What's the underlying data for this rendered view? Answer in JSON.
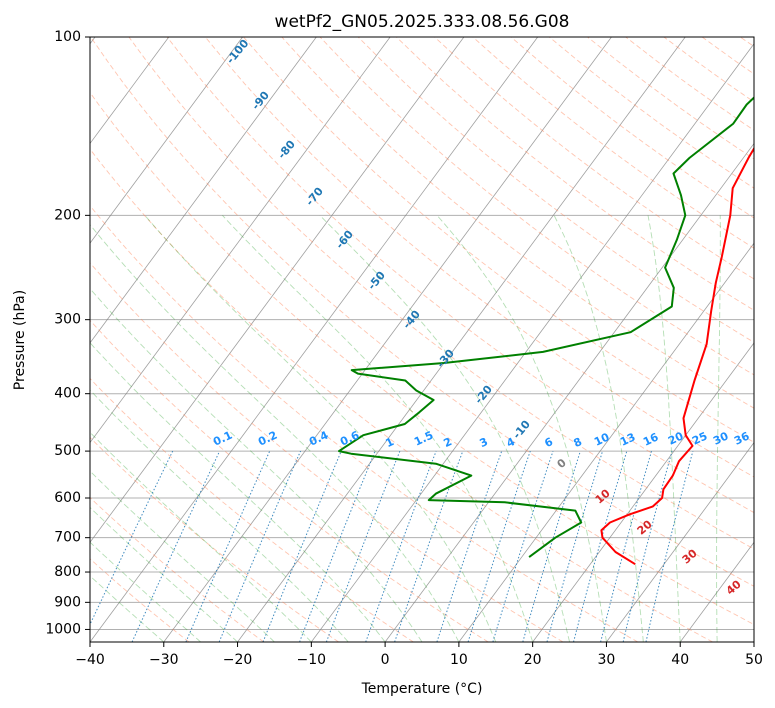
{
  "chart_data": {
    "type": "line",
    "title": "wetPf2_GN05.2025.333.08.56.G08",
    "xlabel": "Temperature (°C)",
    "ylabel": "Pressure (hPa)",
    "xlim": [
      -40,
      50
    ],
    "ylim": [
      1050,
      100
    ],
    "x_ticks": [
      -40,
      -30,
      -20,
      -10,
      0,
      10,
      20,
      30,
      40,
      50
    ],
    "y_ticks": [
      100,
      200,
      300,
      400,
      500,
      600,
      700,
      800,
      900,
      1000
    ],
    "colors": {
      "temperature": "#ff0000",
      "dewpoint": "#008000",
      "isotherm": "#808080",
      "dry_adiabat": "#ff7f50",
      "moist_adiabat": "#2ca02c",
      "mixing_ratio": "#1f77b4",
      "mixing_label": "#1e90ff",
      "moist_label": "#d62728",
      "dry_label": "#1f77b4",
      "zero_label": "#808080"
    },
    "series": [
      {
        "name": "Temperature",
        "points": [
          [
            2.8,
            100
          ],
          [
            0.6,
            120
          ],
          [
            0,
            140
          ],
          [
            0.7,
            160
          ],
          [
            1.6,
            180
          ],
          [
            4,
            200
          ],
          [
            7,
            235
          ],
          [
            8.8,
            260
          ],
          [
            11,
            290
          ],
          [
            13.7,
            330
          ],
          [
            15.7,
            380
          ],
          [
            18,
            440
          ],
          [
            20,
            470
          ],
          [
            22,
            490
          ],
          [
            21.7,
            520
          ],
          [
            22.3,
            550
          ],
          [
            22.4,
            580
          ],
          [
            23.1,
            600
          ],
          [
            22.7,
            620
          ],
          [
            20.3,
            640
          ],
          [
            18.5,
            660
          ],
          [
            18.1,
            680
          ],
          [
            19,
            700
          ],
          [
            22.2,
            740
          ],
          [
            26.1,
            776
          ]
        ]
      },
      {
        "name": "Dewpoint",
        "points": [
          [
            0.4,
            100
          ],
          [
            -3.5,
            115
          ],
          [
            -4.9,
            130
          ],
          [
            -4.8,
            140
          ],
          [
            -7.3,
            160
          ],
          [
            -7.9,
            170
          ],
          [
            -4.7,
            185
          ],
          [
            -2.1,
            200
          ],
          [
            -0.8,
            220
          ],
          [
            0.4,
            245
          ],
          [
            3.6,
            265
          ],
          [
            5.2,
            285
          ],
          [
            2.2,
            315
          ],
          [
            -7.7,
            340
          ],
          [
            -20,
            355
          ],
          [
            -31.8,
            365
          ],
          [
            -30.6,
            370
          ],
          [
            -23.5,
            380
          ],
          [
            -21,
            395
          ],
          [
            -17.7,
            410
          ],
          [
            -18.4,
            430
          ],
          [
            -19.2,
            450
          ],
          [
            -23.7,
            470
          ],
          [
            -25.4,
            500
          ],
          [
            -23.5,
            505
          ],
          [
            -11,
            525
          ],
          [
            -5,
            550
          ],
          [
            -8,
            590
          ],
          [
            -8.3,
            605
          ],
          [
            2.2,
            610
          ],
          [
            12.6,
            630
          ],
          [
            14.6,
            660
          ],
          [
            12.6,
            700
          ],
          [
            11,
            755
          ]
        ]
      }
    ],
    "isotherm_values": [
      -100,
      -90,
      -80,
      -70,
      -60,
      -50,
      -40,
      -30,
      -20,
      -10,
      0,
      10,
      20,
      30,
      40,
      50
    ],
    "dry_labels": [
      "-100",
      "-90",
      "-80",
      "-70",
      "-60",
      "-50",
      "-40",
      "-30",
      "-20",
      "-10"
    ],
    "moist_labels": [
      "10",
      "20",
      "30",
      "40"
    ],
    "zero_label": "0",
    "mixing_labels": [
      "0.1",
      "0.2",
      "0.4",
      "0.6",
      "1",
      "1.5",
      "2",
      "3",
      "4",
      "6",
      "8",
      "10",
      "13",
      "16",
      "20",
      "25",
      "30",
      "36"
    ]
  }
}
